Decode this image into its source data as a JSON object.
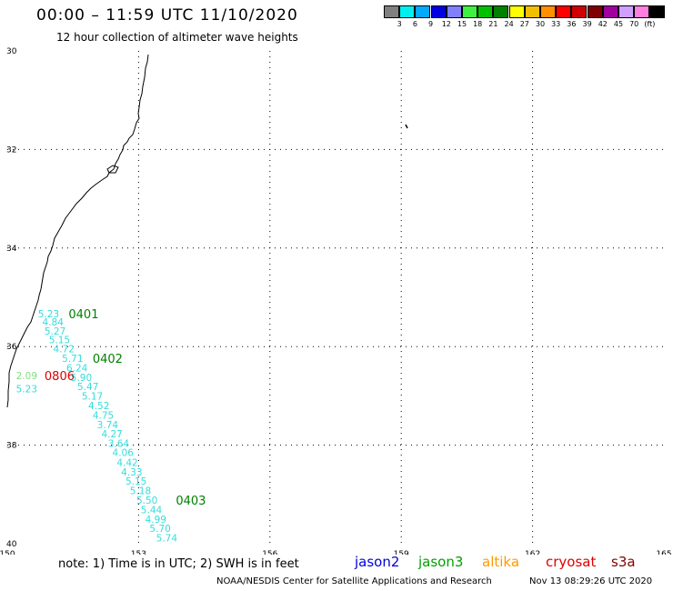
{
  "header": {
    "title": "00:00 – 11:59 UTC 11/10/2020",
    "subtitle": "12 hour collection of altimeter wave heights"
  },
  "legend": {
    "swatches": [
      {
        "color": "#808080",
        "label": ""
      },
      {
        "color": "#00f0f0",
        "label": "3"
      },
      {
        "color": "#00aaff",
        "label": "6"
      },
      {
        "color": "#0000e0",
        "label": "9"
      },
      {
        "color": "#8080ff",
        "label": "12"
      },
      {
        "color": "#40f040",
        "label": "15"
      },
      {
        "color": "#00c000",
        "label": "18"
      },
      {
        "color": "#008000",
        "label": "21"
      },
      {
        "color": "#ffff00",
        "label": "24"
      },
      {
        "color": "#f0c000",
        "label": "27"
      },
      {
        "color": "#ff9000",
        "label": "30"
      },
      {
        "color": "#ff0000",
        "label": "33"
      },
      {
        "color": "#d00000",
        "label": "36"
      },
      {
        "color": "#800000",
        "label": "39"
      },
      {
        "color": "#a000a0",
        "label": "42"
      },
      {
        "color": "#d0a0ff",
        "label": "45"
      },
      {
        "color": "#ff80e0",
        "label": "70"
      },
      {
        "color": "#000000",
        "label": "(ft)"
      }
    ]
  },
  "map_axes": {
    "lon_range": [
      150,
      165
    ],
    "lat_range": [
      -40,
      -30
    ],
    "lon_ticks": [
      "150",
      "153",
      "156",
      "159",
      "162",
      "165"
    ],
    "lat_ticks": [
      "30",
      "32",
      "34",
      "36",
      "38",
      "40"
    ]
  },
  "swh_labels": [
    {
      "text": "5.23",
      "lon": 150.7,
      "lat": -35.33,
      "color": "#33dddd"
    },
    {
      "text": "4.84",
      "lon": 150.8,
      "lat": -35.5,
      "color": "#33dddd"
    },
    {
      "text": "5.27",
      "lon": 150.85,
      "lat": -35.68,
      "color": "#33dddd"
    },
    {
      "text": "5.15",
      "lon": 150.95,
      "lat": -35.86,
      "color": "#33dddd"
    },
    {
      "text": "4.72",
      "lon": 151.05,
      "lat": -36.04,
      "color": "#33dddd"
    },
    {
      "text": "5.71",
      "lon": 151.25,
      "lat": -36.24,
      "color": "#33dddd"
    },
    {
      "text": "6.24",
      "lon": 151.35,
      "lat": -36.43,
      "color": "#33dddd"
    },
    {
      "text": "5.90",
      "lon": 151.45,
      "lat": -36.62,
      "color": "#33dddd"
    },
    {
      "text": "5.47",
      "lon": 151.6,
      "lat": -36.81,
      "color": "#33dddd"
    },
    {
      "text": "5.17",
      "lon": 151.7,
      "lat": -37.0,
      "color": "#33dddd"
    },
    {
      "text": "4.52",
      "lon": 151.85,
      "lat": -37.2,
      "color": "#33dddd"
    },
    {
      "text": "4.75",
      "lon": 151.95,
      "lat": -37.39,
      "color": "#33dddd"
    },
    {
      "text": "3.74",
      "lon": 152.05,
      "lat": -37.58,
      "color": "#33dddd"
    },
    {
      "text": "4.27",
      "lon": 152.15,
      "lat": -37.77,
      "color": "#33dddd"
    },
    {
      "text": "3.64",
      "lon": 152.3,
      "lat": -37.96,
      "color": "#33dddd"
    },
    {
      "text": "4.06",
      "lon": 152.4,
      "lat": -38.15,
      "color": "#33dddd"
    },
    {
      "text": "4.42",
      "lon": 152.5,
      "lat": -38.35,
      "color": "#33dddd"
    },
    {
      "text": "4.33",
      "lon": 152.6,
      "lat": -38.54,
      "color": "#33dddd"
    },
    {
      "text": "5.15",
      "lon": 152.7,
      "lat": -38.73,
      "color": "#33dddd"
    },
    {
      "text": "5.18",
      "lon": 152.8,
      "lat": -38.92,
      "color": "#33dddd"
    },
    {
      "text": "5.50",
      "lon": 152.95,
      "lat": -39.11,
      "color": "#33dddd"
    },
    {
      "text": "5.44",
      "lon": 153.05,
      "lat": -39.31,
      "color": "#33dddd"
    },
    {
      "text": "4.99",
      "lon": 153.15,
      "lat": -39.5,
      "color": "#33dddd"
    },
    {
      "text": "5.70",
      "lon": 153.25,
      "lat": -39.69,
      "color": "#33dddd"
    },
    {
      "text": "5.74",
      "lon": 153.4,
      "lat": -39.88,
      "color": "#33dddd"
    },
    {
      "text": "2.09",
      "lon": 150.2,
      "lat": -36.59,
      "color": "#80e080"
    },
    {
      "text": "5.23",
      "lon": 150.2,
      "lat": -36.85,
      "color": "#33dddd"
    }
  ],
  "time_labels": [
    {
      "text": "0401",
      "lon": 151.4,
      "lat": -35.33,
      "color": "#008000"
    },
    {
      "text": "0402",
      "lon": 151.95,
      "lat": -36.24,
      "color": "#008000"
    },
    {
      "text": "0403",
      "lon": 153.85,
      "lat": -39.11,
      "color": "#008000"
    },
    {
      "text": "0806",
      "lon": 150.85,
      "lat": -36.59,
      "color": "#e00000"
    }
  ],
  "footer": {
    "note": "note: 1) Time is in UTC; 2) SWH is in feet",
    "satellites": [
      {
        "name": "jason2",
        "color": "#0000e0"
      },
      {
        "name": "jason3",
        "color": "#00a000"
      },
      {
        "name": "altika",
        "color": "#ff9900"
      },
      {
        "name": "cryosat",
        "color": "#e00000"
      },
      {
        "name": "s3a",
        "color": "#800000"
      }
    ],
    "credit": "NOAA/NESDIS Center for Satellite Applications and Research",
    "timestamp": "Nov 13 08:29:26 UTC 2020"
  }
}
